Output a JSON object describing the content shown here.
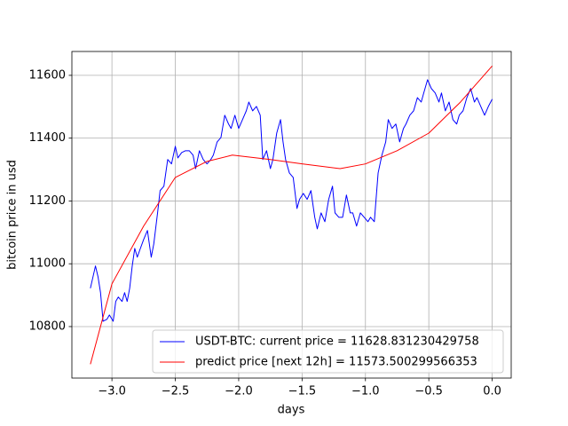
{
  "chart_data": {
    "type": "line",
    "xlabel": "days",
    "ylabel": "bitcoin price in usd",
    "xlim": [
      -3.316,
      0.15
    ],
    "ylim": [
      10636,
      11676
    ],
    "xticks": [
      {
        "value": -3.0,
        "label": "−3.0"
      },
      {
        "value": -2.5,
        "label": "−2.5"
      },
      {
        "value": -2.0,
        "label": "−2.0"
      },
      {
        "value": -1.5,
        "label": "−1.5"
      },
      {
        "value": -1.0,
        "label": "−1.0"
      },
      {
        "value": -0.5,
        "label": "−0.5"
      },
      {
        "value": 0,
        "label": "0.0"
      }
    ],
    "yticks": [
      10800,
      11000,
      11200,
      11400,
      11600
    ],
    "grid": true,
    "legend": "lower right",
    "series": [
      {
        "name": "USDT-BTC: current price = 11628.831230429758",
        "color": "#0000ff",
        "x": [
          -3.17,
          -3.13,
          -3.11,
          -3.09,
          -3.07,
          -3.04,
          -3.02,
          -2.99,
          -2.97,
          -2.95,
          -2.92,
          -2.9,
          -2.88,
          -2.86,
          -2.84,
          -2.82,
          -2.8,
          -2.78,
          -2.75,
          -2.72,
          -2.69,
          -2.67,
          -2.64,
          -2.62,
          -2.59,
          -2.56,
          -2.53,
          -2.5,
          -2.48,
          -2.45,
          -2.42,
          -2.39,
          -2.36,
          -2.34,
          -2.31,
          -2.28,
          -2.25,
          -2.22,
          -2.2,
          -2.17,
          -2.14,
          -2.11,
          -2.08,
          -2.06,
          -2.03,
          -2.0,
          -1.97,
          -1.94,
          -1.92,
          -1.89,
          -1.86,
          -1.83,
          -1.81,
          -1.78,
          -1.75,
          -1.73,
          -1.7,
          -1.67,
          -1.65,
          -1.63,
          -1.6,
          -1.57,
          -1.54,
          -1.52,
          -1.49,
          -1.46,
          -1.43,
          -1.4,
          -1.38,
          -1.35,
          -1.32,
          -1.29,
          -1.26,
          -1.24,
          -1.21,
          -1.18,
          -1.15,
          -1.12,
          -1.1,
          -1.07,
          -1.04,
          -1.01,
          -0.98,
          -0.96,
          -0.93,
          -0.9,
          -0.87,
          -0.84,
          -0.82,
          -0.79,
          -0.76,
          -0.73,
          -0.7,
          -0.68,
          -0.65,
          -0.62,
          -0.59,
          -0.56,
          -0.54,
          -0.51,
          -0.48,
          -0.45,
          -0.42,
          -0.4,
          -0.37,
          -0.34,
          -0.31,
          -0.28,
          -0.26,
          -0.23,
          -0.2,
          -0.17,
          -0.14,
          -0.12,
          -0.09,
          -0.06,
          -0.03,
          0.0
        ],
        "values": [
          10922,
          10993,
          10959,
          10908,
          10817,
          10823,
          10837,
          10817,
          10880,
          10894,
          10880,
          10908,
          10880,
          10922,
          10993,
          11049,
          11021,
          11044,
          11077,
          11106,
          11021,
          11063,
          11162,
          11233,
          11247,
          11332,
          11318,
          11374,
          11337,
          11354,
          11360,
          11360,
          11346,
          11303,
          11360,
          11332,
          11318,
          11332,
          11346,
          11388,
          11402,
          11473,
          11445,
          11431,
          11473,
          11431,
          11459,
          11487,
          11515,
          11487,
          11501,
          11473,
          11332,
          11360,
          11303,
          11332,
          11416,
          11459,
          11388,
          11332,
          11289,
          11275,
          11176,
          11205,
          11224,
          11205,
          11233,
          11148,
          11111,
          11162,
          11134,
          11205,
          11247,
          11162,
          11148,
          11148,
          11219,
          11162,
          11162,
          11120,
          11162,
          11148,
          11134,
          11148,
          11134,
          11289,
          11346,
          11388,
          11459,
          11431,
          11445,
          11388,
          11431,
          11445,
          11473,
          11487,
          11529,
          11515,
          11544,
          11586,
          11558,
          11544,
          11515,
          11544,
          11487,
          11515,
          11459,
          11445,
          11473,
          11487,
          11529,
          11558,
          11515,
          11529,
          11501,
          11473,
          11501,
          11524
        ]
      },
      {
        "name": "predict price [next 12h] = 11573.500299566353",
        "color": "#ff0000",
        "x": [
          -3.17,
          -3.0,
          -2.75,
          -2.5,
          -2.25,
          -2.05,
          -1.75,
          -1.5,
          -1.2,
          -1.0,
          -0.75,
          -0.5,
          -0.25,
          0.0
        ],
        "values": [
          10680,
          10936,
          11120,
          11275,
          11326,
          11346,
          11332,
          11318,
          11303,
          11318,
          11360,
          11416,
          11515,
          11630
        ]
      }
    ]
  }
}
